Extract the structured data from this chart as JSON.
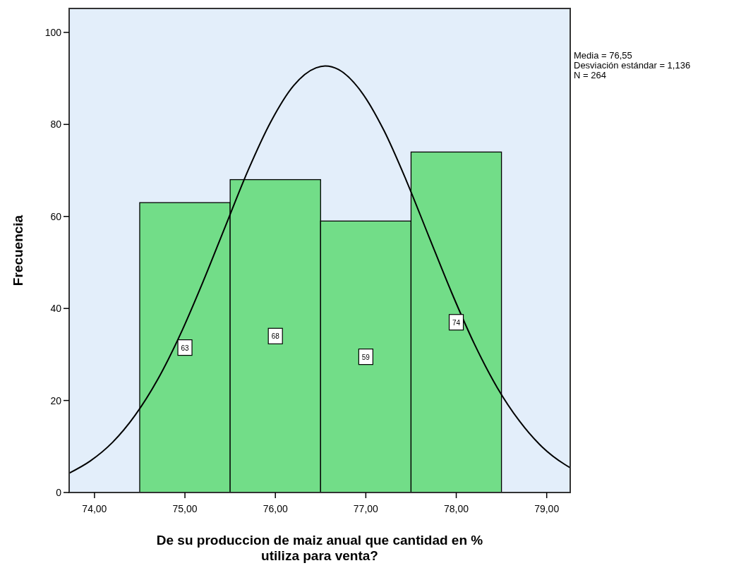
{
  "chart_data": {
    "type": "histogram",
    "xlabel": "De su produccion de maiz anual que cantidad en % utiliza para venta?",
    "ylabel": "Frecuencia",
    "annotations": [
      "Media = 76,55",
      "Desviación estándar = 1,136",
      "N = 264"
    ],
    "bins": [
      74.5,
      75.5,
      76.5,
      77.5,
      78.5
    ],
    "series": [
      {
        "color": "#72dd88",
        "values": [
          63,
          68,
          59,
          74
        ],
        "value_labels": [
          "63",
          "68",
          "59",
          "74"
        ]
      },
      {
        "type": "line",
        "color": "#000000",
        "x": [
          73.72,
          73.95,
          74.2,
          74.45,
          74.7,
          74.95,
          75.2,
          75.45,
          75.7,
          75.95,
          76.2,
          76.45,
          76.55,
          76.7,
          76.95,
          77.2,
          77.45,
          77.7,
          77.95,
          78.2,
          78.45,
          78.7,
          78.95,
          79.2,
          79.26
        ],
        "values": [
          4.2,
          6.8,
          10.9,
          16.8,
          24.6,
          34.4,
          45.8,
          58.0,
          70.1,
          80.6,
          88.4,
          92.3,
          92.7,
          91.9,
          87.1,
          78.7,
          67.7,
          55.5,
          43.4,
          32.3,
          22.9,
          15.5,
          9.9,
          6.1,
          5.4
        ]
      }
    ],
    "xlim": [
      73.72,
      79.26
    ],
    "xticks": [
      {
        "value": 74,
        "label": "74,00"
      },
      {
        "value": 75,
        "label": "75,00"
      },
      {
        "value": 76,
        "label": "76,00"
      },
      {
        "value": 77,
        "label": "77,00"
      },
      {
        "value": 78,
        "label": "78,00"
      },
      {
        "value": 79,
        "label": "79,00"
      }
    ],
    "ylim": [
      0,
      105.2
    ],
    "yticks": [
      0,
      20,
      40,
      60,
      80,
      100
    ]
  }
}
